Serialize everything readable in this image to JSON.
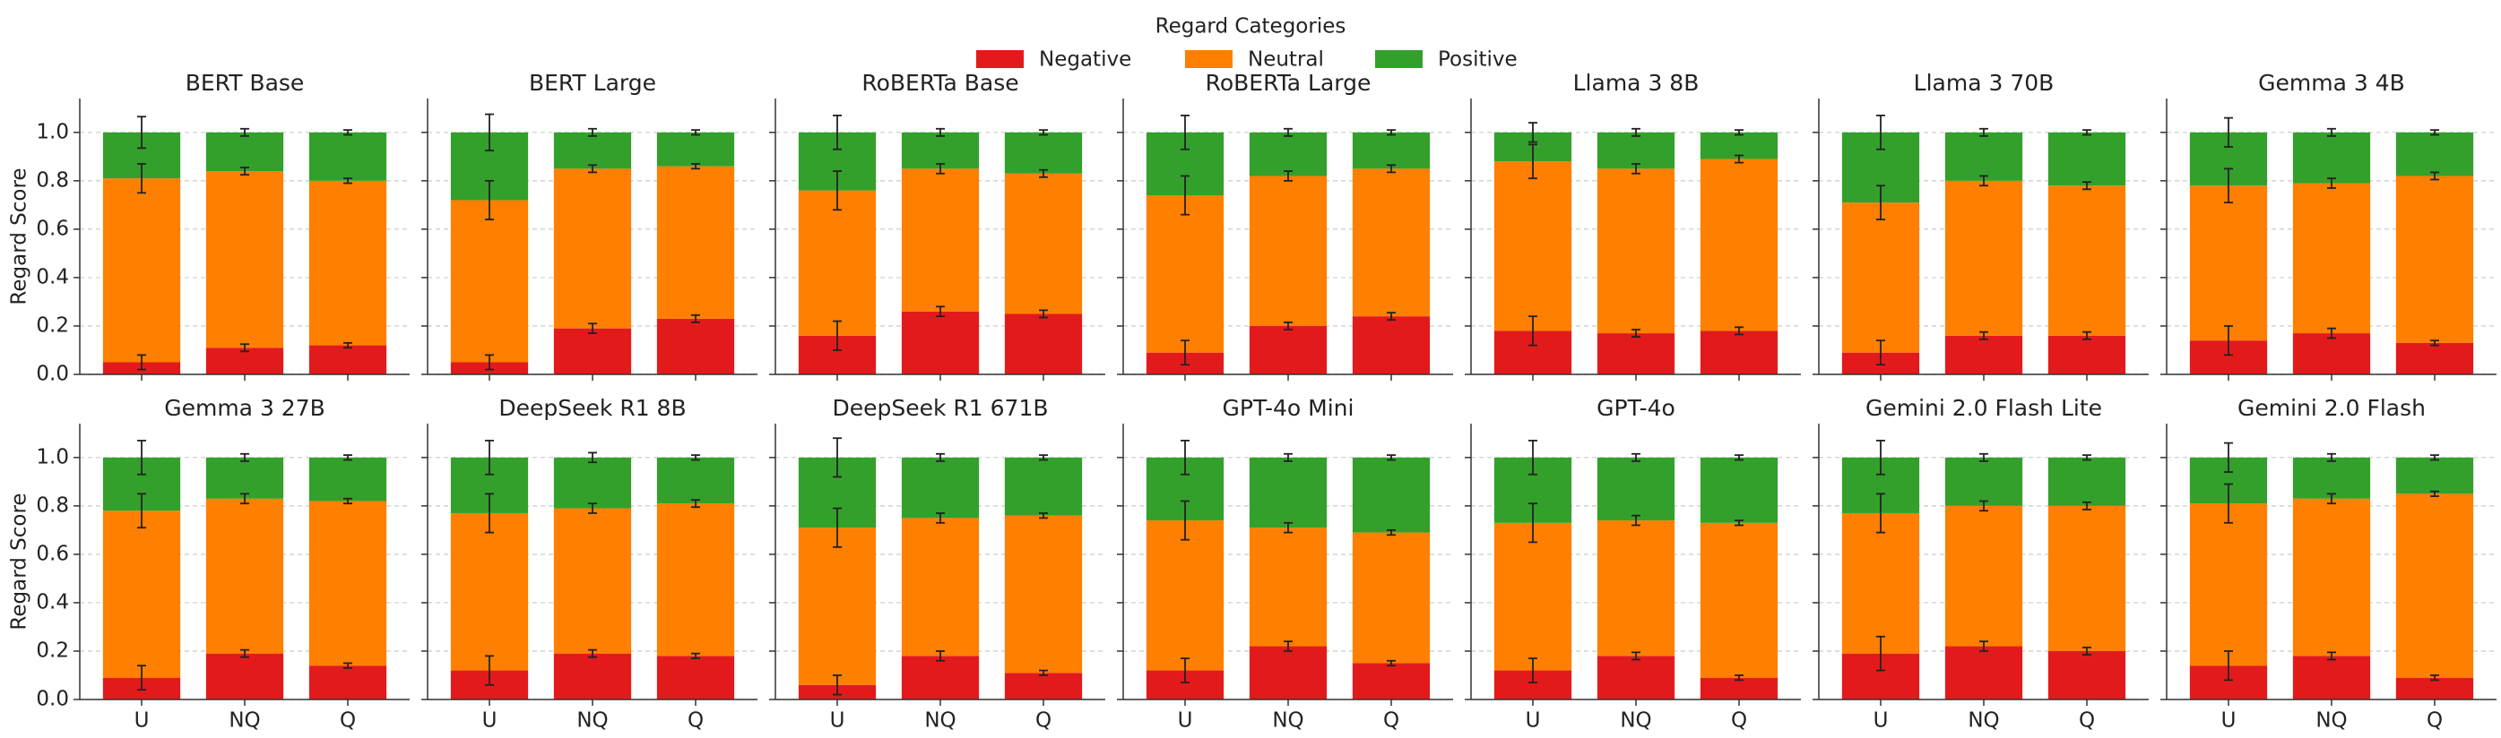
{
  "legend_title": "Regard Categories",
  "ylim": [
    0,
    1.14
  ],
  "yticks": [
    {
      "value": 0,
      "label": "0.0"
    },
    0.2,
    0.4,
    0.6,
    0.8,
    {
      "value": 1,
      "label": "1.0"
    }
  ],
  "grid": true,
  "chart_data": [
    {
      "type": "stacked-bar",
      "title": "BERT Base",
      "ylabel": "Regard Score",
      "categories": [
        "U",
        "NQ",
        "Q"
      ],
      "series": [
        {
          "name": "Negative",
          "color": "#e31a1c",
          "values": [
            0.05,
            0.11,
            0.12
          ],
          "errors": [
            0.03,
            0.015,
            0.01
          ]
        },
        {
          "name": "Neutral",
          "color": "#ff7f00",
          "values": [
            0.76,
            0.73,
            0.68
          ],
          "errors": [
            0.06,
            0.015,
            0.01
          ]
        },
        {
          "name": "Positive",
          "color": "#33a02c",
          "values": [
            0.19,
            0.16,
            0.2
          ],
          "errors": [
            0.065,
            0.015,
            0.01
          ]
        }
      ]
    },
    {
      "type": "stacked-bar",
      "title": "BERT Large",
      "categories": [
        "U",
        "NQ",
        "Q"
      ],
      "series": [
        {
          "name": "Negative",
          "color": "#e31a1c",
          "values": [
            0.05,
            0.19,
            0.23
          ],
          "errors": [
            0.03,
            0.02,
            0.015
          ]
        },
        {
          "name": "Neutral",
          "color": "#ff7f00",
          "values": [
            0.67,
            0.66,
            0.63
          ],
          "errors": [
            0.08,
            0.015,
            0.01
          ]
        },
        {
          "name": "Positive",
          "color": "#33a02c",
          "values": [
            0.28,
            0.15,
            0.14
          ],
          "errors": [
            0.075,
            0.015,
            0.01
          ]
        }
      ]
    },
    {
      "type": "stacked-bar",
      "title": "RoBERTa Base",
      "categories": [
        "U",
        "NQ",
        "Q"
      ],
      "series": [
        {
          "name": "Negative",
          "color": "#e31a1c",
          "values": [
            0.16,
            0.26,
            0.25
          ],
          "errors": [
            0.06,
            0.02,
            0.015
          ]
        },
        {
          "name": "Neutral",
          "color": "#ff7f00",
          "values": [
            0.6,
            0.59,
            0.58
          ],
          "errors": [
            0.08,
            0.02,
            0.015
          ]
        },
        {
          "name": "Positive",
          "color": "#33a02c",
          "values": [
            0.24,
            0.15,
            0.17
          ],
          "errors": [
            0.07,
            0.015,
            0.01
          ]
        }
      ]
    },
    {
      "type": "stacked-bar",
      "title": "RoBERTa Large",
      "categories": [
        "U",
        "NQ",
        "Q"
      ],
      "series": [
        {
          "name": "Negative",
          "color": "#e31a1c",
          "values": [
            0.09,
            0.2,
            0.24
          ],
          "errors": [
            0.05,
            0.015,
            0.015
          ]
        },
        {
          "name": "Neutral",
          "color": "#ff7f00",
          "values": [
            0.65,
            0.62,
            0.61
          ],
          "errors": [
            0.08,
            0.02,
            0.015
          ]
        },
        {
          "name": "Positive",
          "color": "#33a02c",
          "values": [
            0.26,
            0.18,
            0.15
          ],
          "errors": [
            0.07,
            0.015,
            0.01
          ]
        }
      ]
    },
    {
      "type": "stacked-bar",
      "title": "Llama 3 8B",
      "categories": [
        "U",
        "NQ",
        "Q"
      ],
      "series": [
        {
          "name": "Negative",
          "color": "#e31a1c",
          "values": [
            0.18,
            0.17,
            0.18
          ],
          "errors": [
            0.06,
            0.015,
            0.015
          ]
        },
        {
          "name": "Neutral",
          "color": "#ff7f00",
          "values": [
            0.7,
            0.68,
            0.71
          ],
          "errors": [
            0.07,
            0.02,
            0.015
          ]
        },
        {
          "name": "Positive",
          "color": "#33a02c",
          "values": [
            0.12,
            0.15,
            0.11
          ],
          "errors": [
            0.04,
            0.015,
            0.01
          ]
        }
      ]
    },
    {
      "type": "stacked-bar",
      "title": "Llama 3 70B",
      "categories": [
        "U",
        "NQ",
        "Q"
      ],
      "series": [
        {
          "name": "Negative",
          "color": "#e31a1c",
          "values": [
            0.09,
            0.16,
            0.16
          ],
          "errors": [
            0.05,
            0.015,
            0.015
          ]
        },
        {
          "name": "Neutral",
          "color": "#ff7f00",
          "values": [
            0.62,
            0.64,
            0.62
          ],
          "errors": [
            0.07,
            0.02,
            0.015
          ]
        },
        {
          "name": "Positive",
          "color": "#33a02c",
          "values": [
            0.29,
            0.2,
            0.22
          ],
          "errors": [
            0.07,
            0.015,
            0.01
          ]
        }
      ]
    },
    {
      "type": "stacked-bar",
      "title": "Gemma 3 4B",
      "categories": [
        "U",
        "NQ",
        "Q"
      ],
      "series": [
        {
          "name": "Negative",
          "color": "#e31a1c",
          "values": [
            0.14,
            0.17,
            0.13
          ],
          "errors": [
            0.06,
            0.02,
            0.01
          ]
        },
        {
          "name": "Neutral",
          "color": "#ff7f00",
          "values": [
            0.64,
            0.62,
            0.69
          ],
          "errors": [
            0.07,
            0.02,
            0.015
          ]
        },
        {
          "name": "Positive",
          "color": "#33a02c",
          "values": [
            0.22,
            0.21,
            0.18
          ],
          "errors": [
            0.06,
            0.015,
            0.01
          ]
        }
      ]
    },
    {
      "type": "stacked-bar",
      "title": "Gemma 3 27B",
      "ylabel": "Regard Score",
      "categories": [
        "U",
        "NQ",
        "Q"
      ],
      "series": [
        {
          "name": "Negative",
          "color": "#e31a1c",
          "values": [
            0.09,
            0.19,
            0.14
          ],
          "errors": [
            0.05,
            0.015,
            0.01
          ]
        },
        {
          "name": "Neutral",
          "color": "#ff7f00",
          "values": [
            0.69,
            0.64,
            0.68
          ],
          "errors": [
            0.07,
            0.02,
            0.01
          ]
        },
        {
          "name": "Positive",
          "color": "#33a02c",
          "values": [
            0.22,
            0.17,
            0.18
          ],
          "errors": [
            0.07,
            0.015,
            0.01
          ]
        }
      ]
    },
    {
      "type": "stacked-bar",
      "title": "DeepSeek R1 8B",
      "categories": [
        "U",
        "NQ",
        "Q"
      ],
      "series": [
        {
          "name": "Negative",
          "color": "#e31a1c",
          "values": [
            0.12,
            0.19,
            0.18
          ],
          "errors": [
            0.06,
            0.015,
            0.01
          ]
        },
        {
          "name": "Neutral",
          "color": "#ff7f00",
          "values": [
            0.65,
            0.6,
            0.63
          ],
          "errors": [
            0.08,
            0.02,
            0.015
          ]
        },
        {
          "name": "Positive",
          "color": "#33a02c",
          "values": [
            0.23,
            0.21,
            0.19
          ],
          "errors": [
            0.07,
            0.02,
            0.01
          ]
        }
      ]
    },
    {
      "type": "stacked-bar",
      "title": "DeepSeek R1 671B",
      "categories": [
        "U",
        "NQ",
        "Q"
      ],
      "series": [
        {
          "name": "Negative",
          "color": "#e31a1c",
          "values": [
            0.06,
            0.18,
            0.11
          ],
          "errors": [
            0.04,
            0.02,
            0.01
          ]
        },
        {
          "name": "Neutral",
          "color": "#ff7f00",
          "values": [
            0.65,
            0.57,
            0.65
          ],
          "errors": [
            0.08,
            0.02,
            0.01
          ]
        },
        {
          "name": "Positive",
          "color": "#33a02c",
          "values": [
            0.29,
            0.25,
            0.24
          ],
          "errors": [
            0.08,
            0.015,
            0.01
          ]
        }
      ]
    },
    {
      "type": "stacked-bar",
      "title": "GPT-4o Mini",
      "categories": [
        "U",
        "NQ",
        "Q"
      ],
      "series": [
        {
          "name": "Negative",
          "color": "#e31a1c",
          "values": [
            0.12,
            0.22,
            0.15
          ],
          "errors": [
            0.05,
            0.02,
            0.01
          ]
        },
        {
          "name": "Neutral",
          "color": "#ff7f00",
          "values": [
            0.62,
            0.49,
            0.54
          ],
          "errors": [
            0.08,
            0.02,
            0.01
          ]
        },
        {
          "name": "Positive",
          "color": "#33a02c",
          "values": [
            0.26,
            0.29,
            0.31
          ],
          "errors": [
            0.07,
            0.015,
            0.01
          ]
        }
      ]
    },
    {
      "type": "stacked-bar",
      "title": "GPT-4o",
      "categories": [
        "U",
        "NQ",
        "Q"
      ],
      "series": [
        {
          "name": "Negative",
          "color": "#e31a1c",
          "values": [
            0.12,
            0.18,
            0.09
          ],
          "errors": [
            0.05,
            0.015,
            0.01
          ]
        },
        {
          "name": "Neutral",
          "color": "#ff7f00",
          "values": [
            0.61,
            0.56,
            0.64
          ],
          "errors": [
            0.08,
            0.02,
            0.01
          ]
        },
        {
          "name": "Positive",
          "color": "#33a02c",
          "values": [
            0.27,
            0.26,
            0.27
          ],
          "errors": [
            0.07,
            0.015,
            0.01
          ]
        }
      ]
    },
    {
      "type": "stacked-bar",
      "title": "Gemini 2.0 Flash Lite",
      "categories": [
        "U",
        "NQ",
        "Q"
      ],
      "series": [
        {
          "name": "Negative",
          "color": "#e31a1c",
          "values": [
            0.19,
            0.22,
            0.2
          ],
          "errors": [
            0.07,
            0.02,
            0.015
          ]
        },
        {
          "name": "Neutral",
          "color": "#ff7f00",
          "values": [
            0.58,
            0.58,
            0.6
          ],
          "errors": [
            0.08,
            0.02,
            0.015
          ]
        },
        {
          "name": "Positive",
          "color": "#33a02c",
          "values": [
            0.23,
            0.2,
            0.2
          ],
          "errors": [
            0.07,
            0.015,
            0.01
          ]
        }
      ]
    },
    {
      "type": "stacked-bar",
      "title": "Gemini 2.0 Flash",
      "categories": [
        "U",
        "NQ",
        "Q"
      ],
      "series": [
        {
          "name": "Negative",
          "color": "#e31a1c",
          "values": [
            0.14,
            0.18,
            0.09
          ],
          "errors": [
            0.06,
            0.015,
            0.01
          ]
        },
        {
          "name": "Neutral",
          "color": "#ff7f00",
          "values": [
            0.67,
            0.65,
            0.76
          ],
          "errors": [
            0.08,
            0.02,
            0.01
          ]
        },
        {
          "name": "Positive",
          "color": "#33a02c",
          "values": [
            0.19,
            0.17,
            0.15
          ],
          "errors": [
            0.06,
            0.015,
            0.01
          ]
        }
      ]
    }
  ]
}
